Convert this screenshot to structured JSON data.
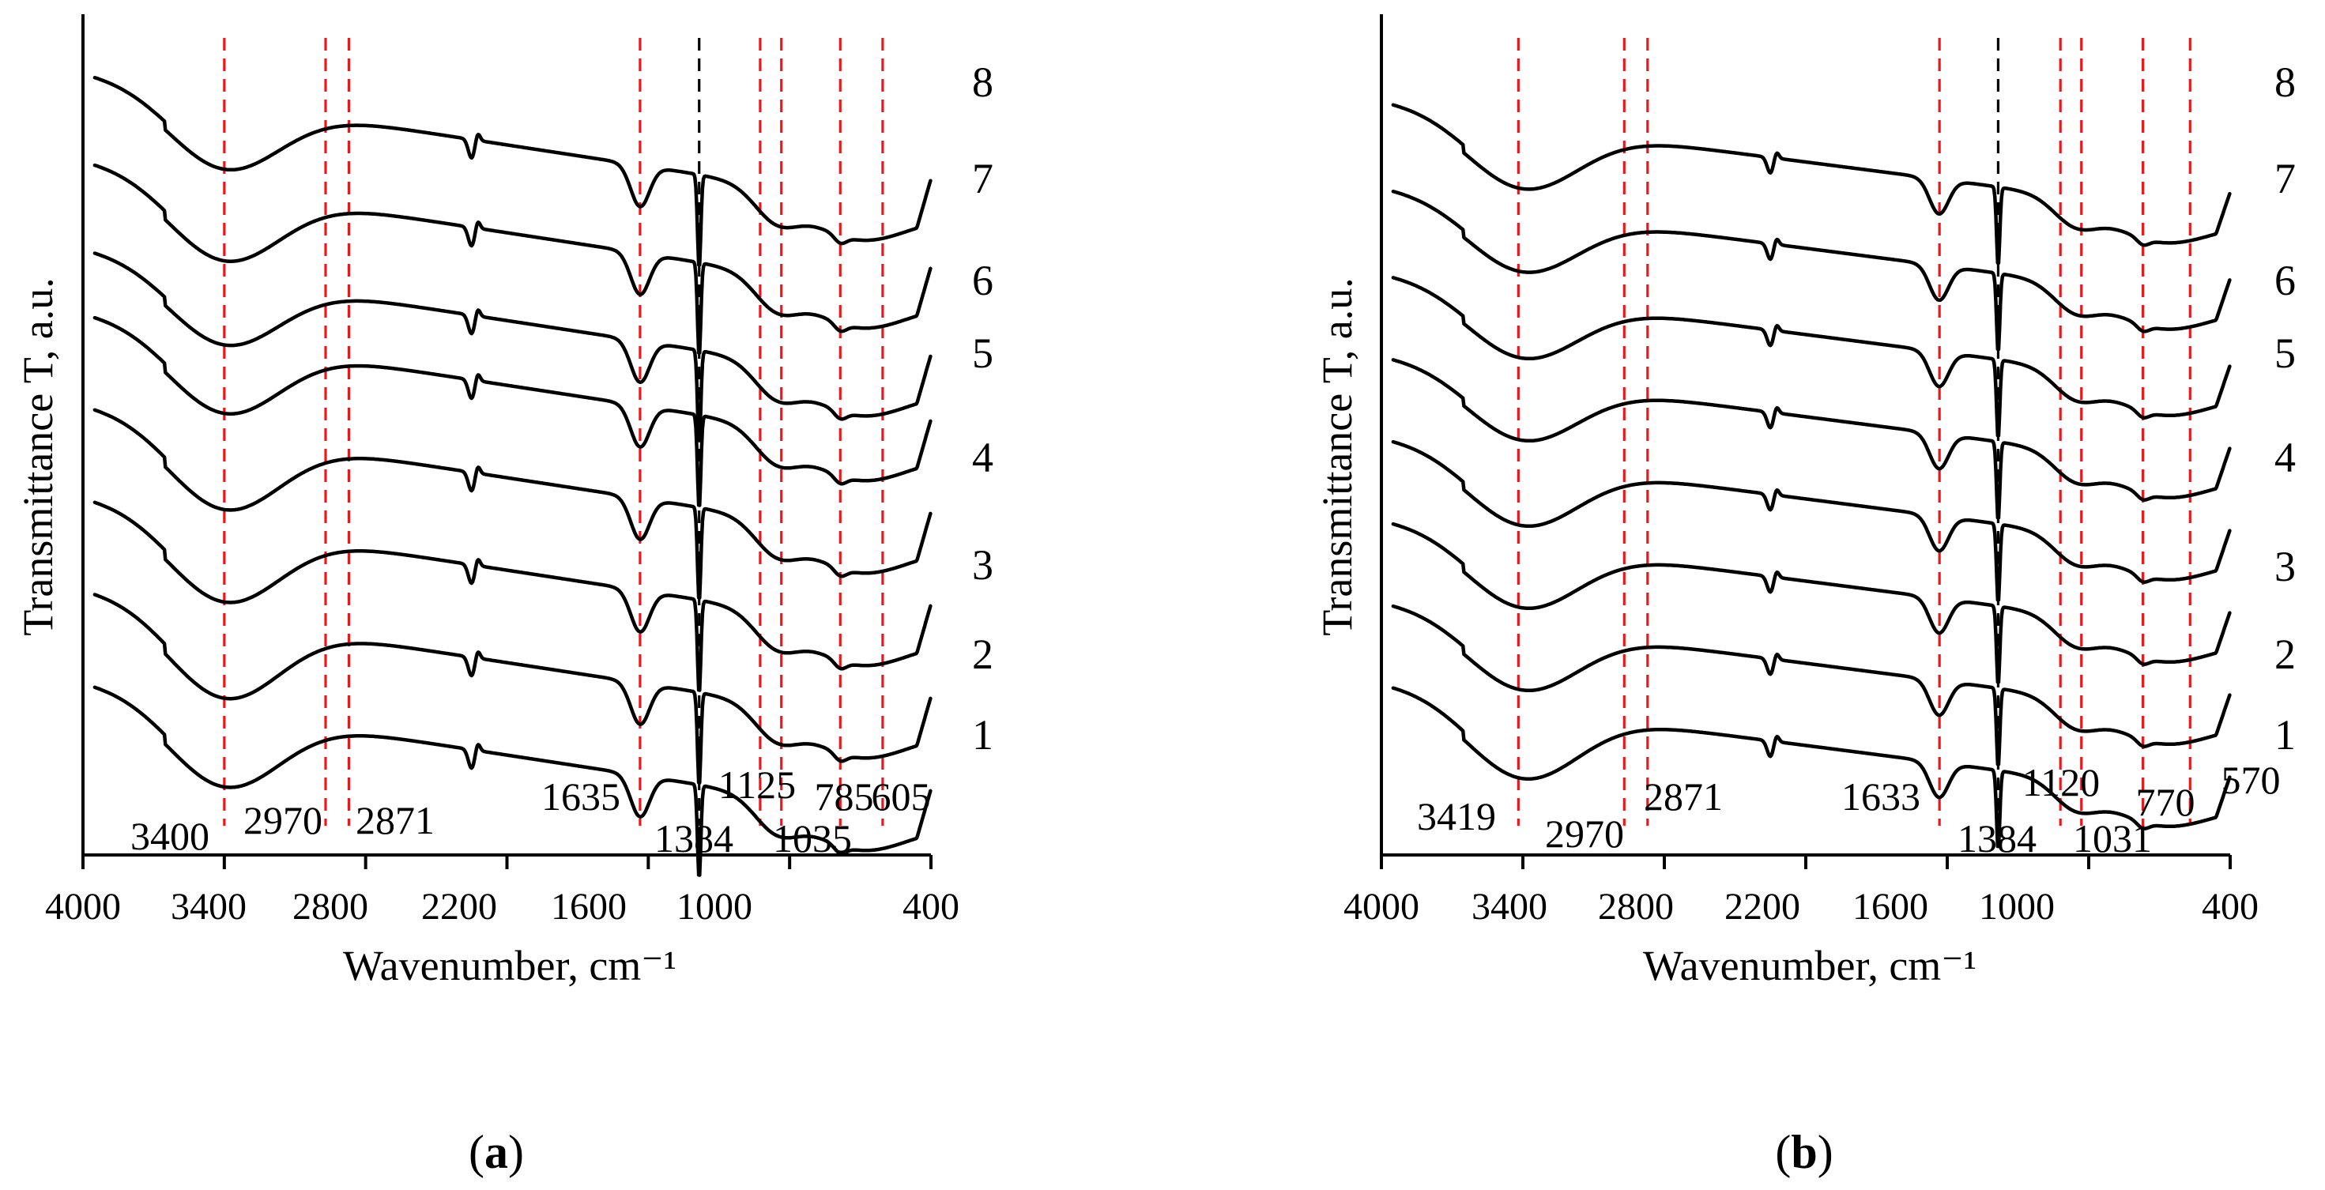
{
  "chart_data": [
    {
      "type": "line",
      "panel_label": "a",
      "xlabel": "Wavenumber, cm⁻¹",
      "ylabel": "Transmittance T, a.u.",
      "xlim": [
        4000,
        400
      ],
      "x_ticks": [
        4000,
        3400,
        2800,
        2200,
        1600,
        1000,
        400
      ],
      "x_tick_labels": [
        "4000",
        "3400",
        "2800",
        "2200",
        "1600",
        "1000",
        "400"
      ],
      "series_labels": [
        "1",
        "2",
        "3",
        "4",
        "5",
        "6",
        "7",
        "8"
      ],
      "series_offsets": [
        0.0,
        1.0,
        2.0,
        3.0,
        4.0,
        4.7,
        5.65,
        6.6
      ],
      "broad_band_depth": [
        1.0,
        1.05,
        1.0,
        1.0,
        0.95,
        0.9,
        0.95,
        0.9
      ],
      "reference_lines": [
        3400,
        2970,
        2871,
        1635,
        1384,
        1125,
        1035,
        785,
        605
      ],
      "black_reference_line": 1384,
      "peak_labels": [
        {
          "text": "3400",
          "x": 3400
        },
        {
          "text": "2970",
          "x": 2970
        },
        {
          "text": "2871",
          "x": 2871
        },
        {
          "text": "1635",
          "x": 1635
        },
        {
          "text": "1384",
          "x": 1384
        },
        {
          "text": "1125",
          "x": 1125
        },
        {
          "text": "1035",
          "x": 1035
        },
        {
          "text": "785",
          "x": 785
        },
        {
          "text": "605",
          "x": 605
        }
      ]
    },
    {
      "type": "line",
      "panel_label": "b",
      "xlabel": "Wavenumber, cm⁻¹",
      "ylabel": "Transmittance T, a.u.",
      "xlim": [
        4000,
        400
      ],
      "x_ticks": [
        4000,
        3400,
        2800,
        2200,
        1600,
        1000,
        400
      ],
      "x_tick_labels": [
        "4000",
        "3400",
        "2800",
        "2200",
        "1600",
        "1000",
        "400"
      ],
      "series_labels": [
        "1",
        "2",
        "3",
        "4",
        "5",
        "6",
        "7",
        "8"
      ],
      "series_offsets": [
        0.0,
        1.0,
        2.0,
        3.0,
        4.0,
        5.0,
        6.05,
        7.1
      ],
      "broad_band_depth": [
        1.1,
        1.0,
        1.0,
        1.0,
        0.95,
        0.95,
        0.95,
        1.0
      ],
      "reference_lines": [
        3419,
        2970,
        2871,
        1633,
        1384,
        1120,
        1031,
        770,
        570
      ],
      "black_reference_line": 1384,
      "peak_labels": [
        {
          "text": "3419",
          "x": 3419
        },
        {
          "text": "2970",
          "x": 2970
        },
        {
          "text": "2871",
          "x": 2871
        },
        {
          "text": "1633",
          "x": 1633
        },
        {
          "text": "1384",
          "x": 1384
        },
        {
          "text": "1120",
          "x": 1120
        },
        {
          "text": "1031",
          "x": 1031
        },
        {
          "text": "770",
          "x": 770
        },
        {
          "text": "570",
          "x": 570
        }
      ]
    }
  ]
}
